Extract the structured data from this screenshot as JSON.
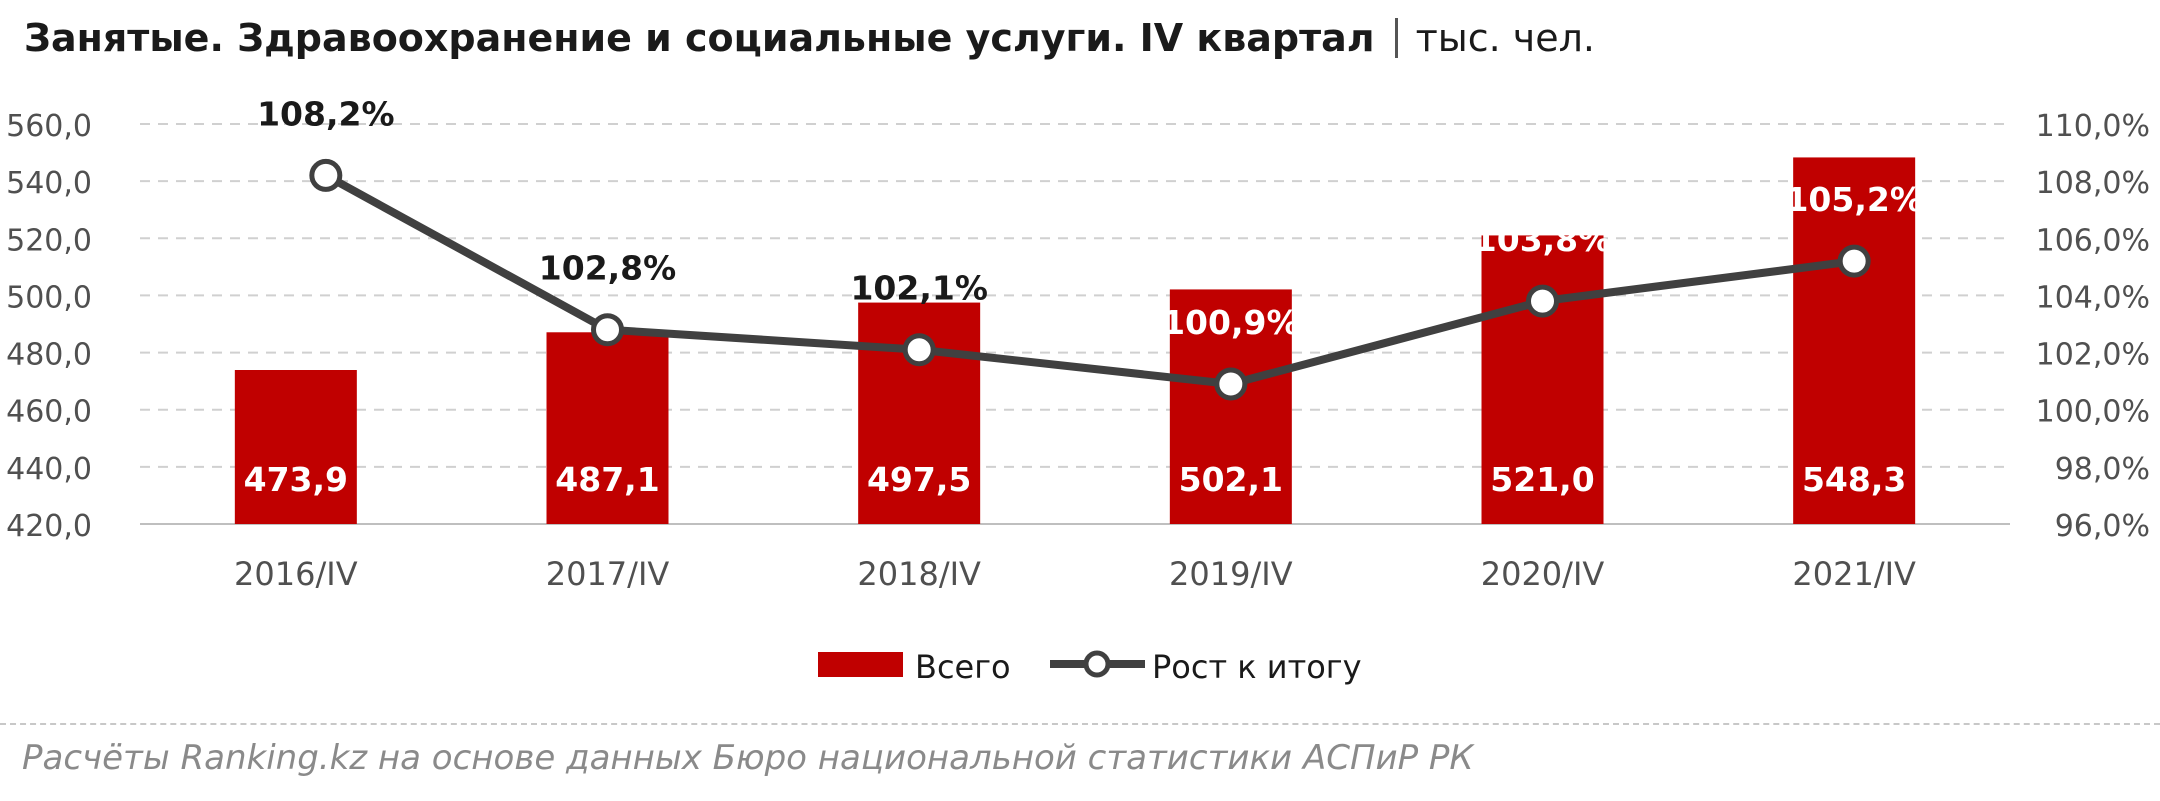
{
  "title": "Занятые. Здравоохранение и социальные услуги. IV квартал",
  "unit": "тыс. чел.",
  "source": "Расчёты Ranking.kz на основе данных Бюро национальной статистики АСПиР РК",
  "colors": {
    "bar": "#c00000",
    "line": "#404040",
    "marker_fill": "#ffffff",
    "grid": "#d0d0d0",
    "text": "#1a1a1a",
    "axis_text": "#505050",
    "bar_label": "#ffffff"
  },
  "chart_data": {
    "type": "bar",
    "categories": [
      "2016/IV",
      "2017/IV",
      "2018/IV",
      "2019/IV",
      "2020/IV",
      "2021/IV"
    ],
    "series": [
      {
        "name": "Всего",
        "type": "bar",
        "axis": "left",
        "values": [
          473.9,
          487.1,
          497.5,
          502.1,
          521.0,
          548.3
        ],
        "labels": [
          "473,9",
          "487,1",
          "497,5",
          "502,1",
          "521,0",
          "548,3"
        ]
      },
      {
        "name": "Рост к итогу",
        "type": "line",
        "axis": "right",
        "values": [
          108.2,
          102.8,
          102.1,
          100.9,
          103.8,
          105.2
        ],
        "labels": [
          "108,2%",
          "102,8%",
          "102,1%",
          "100,9%",
          "103,8%",
          "105,2%"
        ]
      }
    ],
    "ylim_left": [
      420,
      560
    ],
    "yticks_left": [
      "420,0",
      "440,0",
      "460,0",
      "480,0",
      "500,0",
      "520,0",
      "540,0",
      "560,0"
    ],
    "ylim_right": [
      96,
      110
    ],
    "yticks_right": [
      "96,0%",
      "98,0%",
      "100,0%",
      "102,0%",
      "104,0%",
      "106,0%",
      "108,0%",
      "110,0%"
    ],
    "grid": true,
    "legend_position": "bottom"
  }
}
